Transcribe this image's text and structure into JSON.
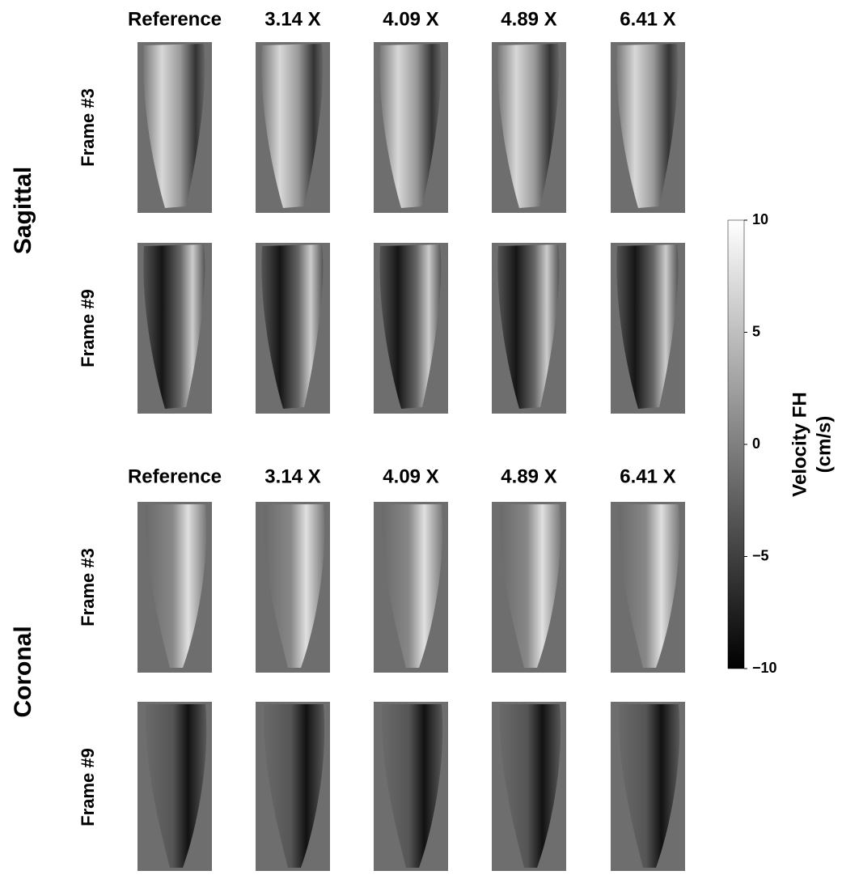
{
  "sections": [
    {
      "label": "Sagittal",
      "columns": [
        "Reference",
        "3.14 X",
        "4.09 X",
        "4.89 X",
        "6.41 X"
      ],
      "rows": [
        "Frame #3",
        "Frame #9"
      ]
    },
    {
      "label": "Coronal",
      "columns": [
        "Reference",
        "3.14 X",
        "4.09 X",
        "4.89 X",
        "6.41 X"
      ],
      "rows": [
        "Frame #3",
        "Frame #9"
      ]
    }
  ],
  "colorbar": {
    "label": [
      "Velocity FH",
      "(cm/s)"
    ],
    "lim": [
      -10,
      10
    ],
    "ticks": [
      10,
      5,
      0,
      {
        "value": -5,
        "label": "−5"
      },
      {
        "value": -10,
        "label": "−10"
      }
    ]
  }
}
